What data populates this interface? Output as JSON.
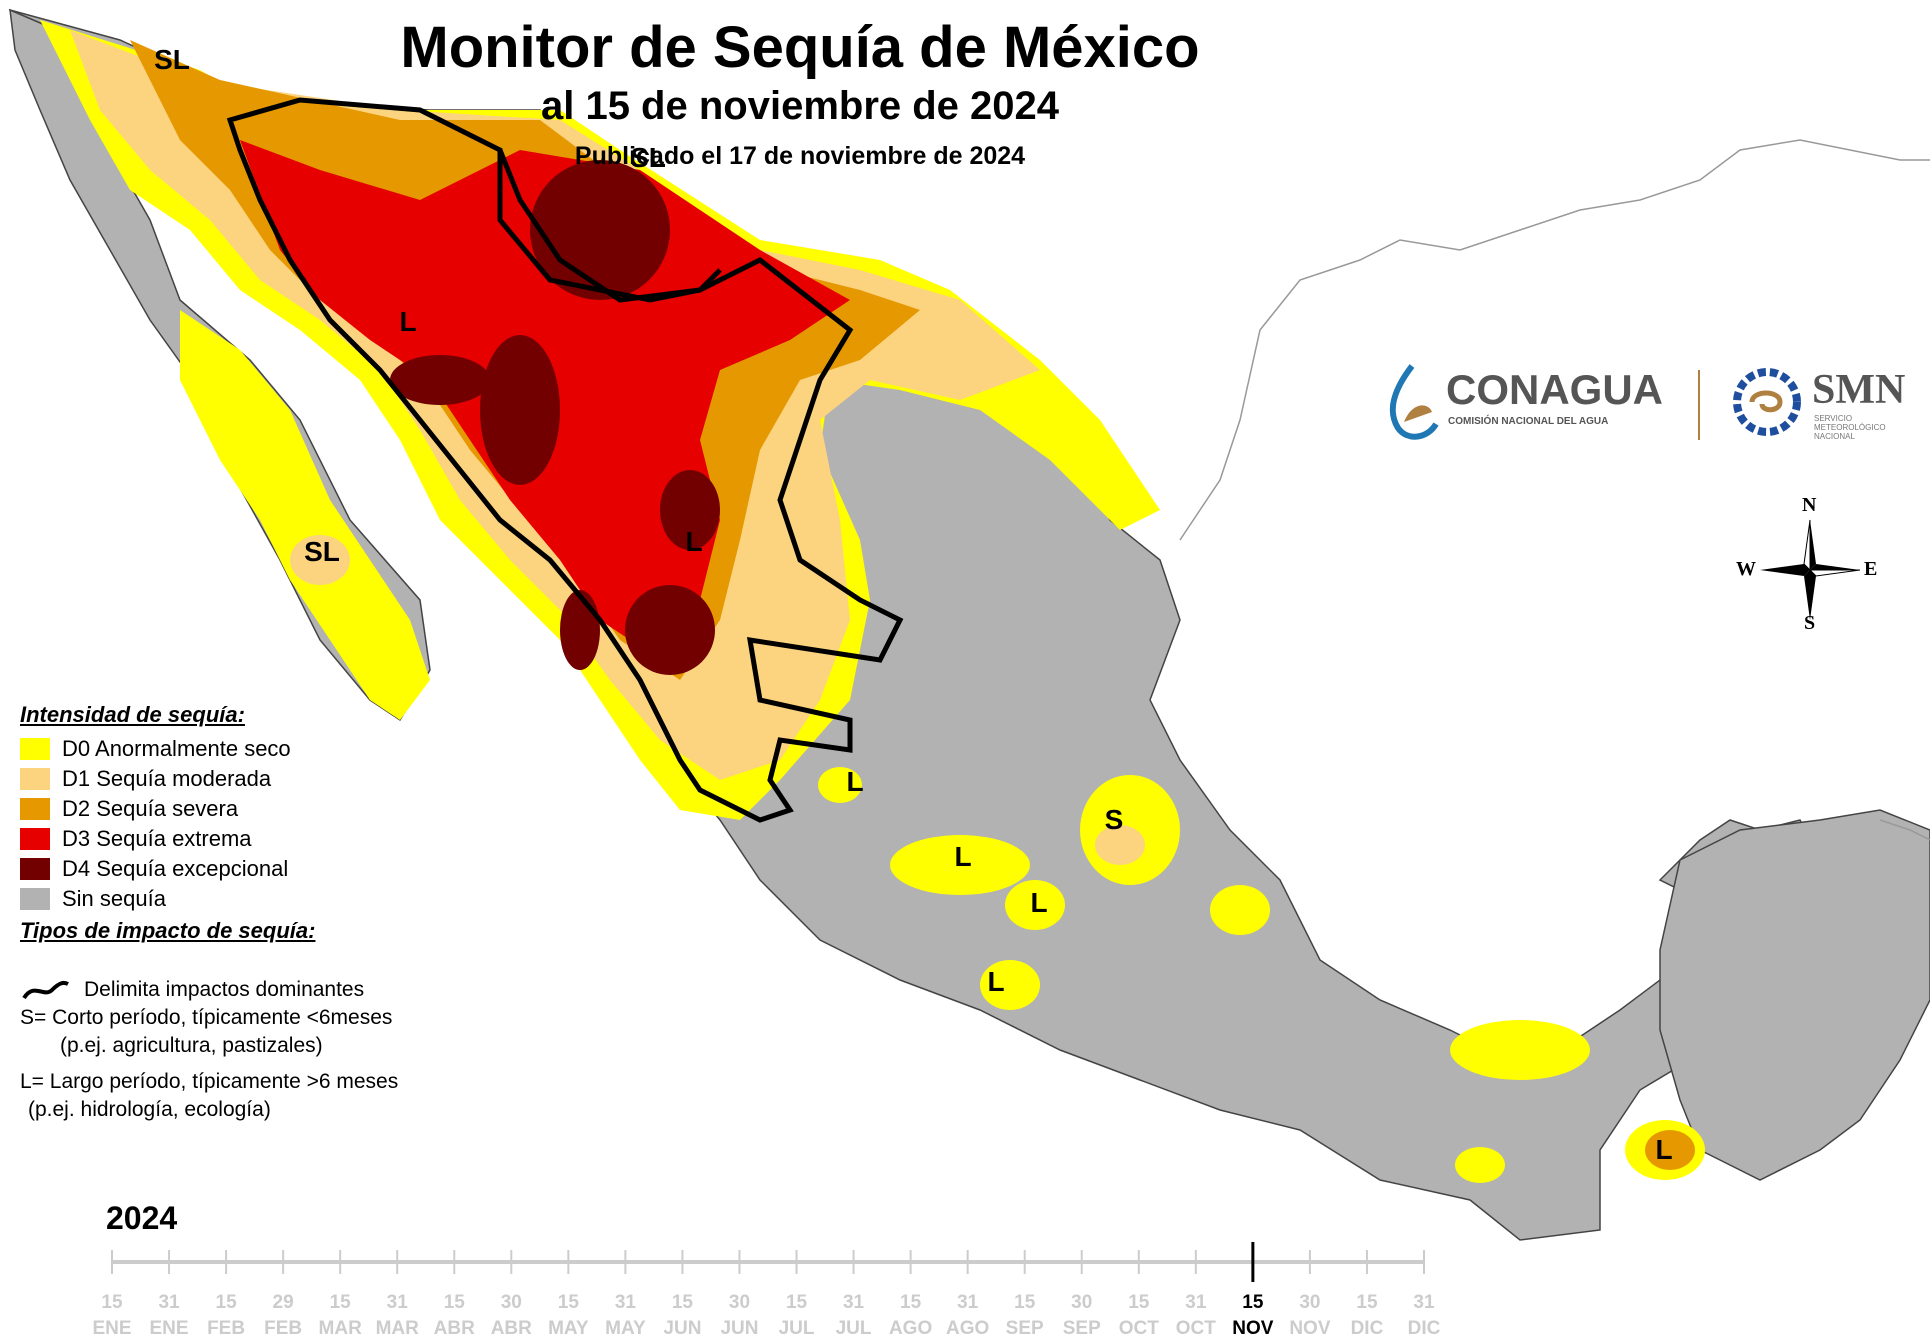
{
  "title": "Monitor de Sequía de México",
  "subtitle": "al 15 de noviembre de 2024",
  "published": "Publicado el 17 de noviembre de 2024",
  "legend": {
    "intensity_heading": "Intensidad de sequía:",
    "categories": [
      {
        "label": "D0 Anormalmente seco",
        "color": "#ffff00"
      },
      {
        "label": "D1 Sequía moderada",
        "color": "#fcd37f"
      },
      {
        "label": "D2 Sequía severa",
        "color": "#e69800"
      },
      {
        "label": "D3 Sequía extrema",
        "color": "#e60000"
      },
      {
        "label": "D4 Sequía excepcional",
        "color": "#730000"
      },
      {
        "label": "Sin sequía",
        "color": "#b2b2b2"
      }
    ],
    "impact_heading": "Tipos de impacto de sequía:",
    "impact_line": "Delimita impactos dominantes",
    "short_term": "S= Corto período, típicamente <6meses",
    "short_term_examples": "(p.ej. agricultura, pastizales)",
    "long_term": "L= Largo período, típicamente >6 meses",
    "long_term_examples": "(p.ej. hidrología, ecología)"
  },
  "impact_labels": [
    "SL",
    "SL",
    "L",
    "SL",
    "L",
    "L",
    "S",
    "L",
    "L",
    "L",
    "L"
  ],
  "logos": {
    "conagua": "CONAGUA",
    "conagua_sub": "COMISIÓN NACIONAL DEL AGUA",
    "smn": "SMN",
    "smn_sub": [
      "SERVICIO",
      "METEOROLÓGICO",
      "NACIONAL"
    ]
  },
  "compass": {
    "n": "N",
    "s": "S",
    "e": "E",
    "w": "W"
  },
  "timeline": {
    "year": "2024",
    "current_day": "15",
    "current_month": "NOV",
    "ticks": [
      {
        "day": "15",
        "month": "ENE"
      },
      {
        "day": "31",
        "month": "ENE"
      },
      {
        "day": "15",
        "month": "FEB"
      },
      {
        "day": "29",
        "month": "FEB"
      },
      {
        "day": "15",
        "month": "MAR"
      },
      {
        "day": "31",
        "month": "MAR"
      },
      {
        "day": "15",
        "month": "ABR"
      },
      {
        "day": "30",
        "month": "ABR"
      },
      {
        "day": "15",
        "month": "MAY"
      },
      {
        "day": "31",
        "month": "MAY"
      },
      {
        "day": "15",
        "month": "JUN"
      },
      {
        "day": "30",
        "month": "JUN"
      },
      {
        "day": "15",
        "month": "JUL"
      },
      {
        "day": "31",
        "month": "JUL"
      },
      {
        "day": "15",
        "month": "AGO"
      },
      {
        "day": "31",
        "month": "AGO"
      },
      {
        "day": "15",
        "month": "SEP"
      },
      {
        "day": "30",
        "month": "SEP"
      },
      {
        "day": "15",
        "month": "OCT"
      },
      {
        "day": "31",
        "month": "OCT"
      },
      {
        "day": "15",
        "month": "NOV"
      },
      {
        "day": "30",
        "month": "NOV"
      },
      {
        "day": "15",
        "month": "DIC"
      },
      {
        "day": "31",
        "month": "DIC"
      }
    ],
    "current_index": 20,
    "tick_color": "#cccccc"
  },
  "colors": {
    "land_no_drought": "#b2b2b2",
    "outline": "#000000"
  }
}
